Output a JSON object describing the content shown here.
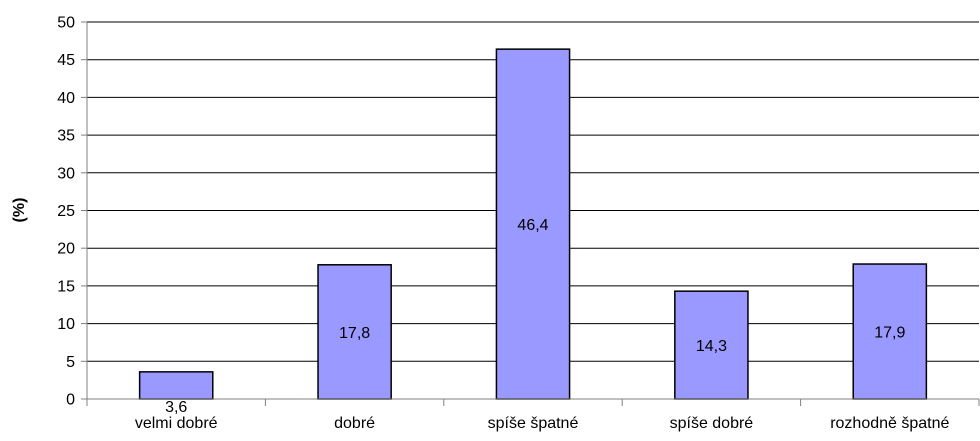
{
  "chart_data": {
    "type": "bar",
    "title": "",
    "xlabel": "",
    "ylabel": "(%)",
    "categories": [
      "velmi dobré",
      "dobré",
      "spíše špatné",
      "spíše dobré",
      "rozhodně špatné"
    ],
    "values": [
      3.6,
      17.8,
      46.4,
      14.3,
      17.9
    ],
    "value_labels": [
      "3,6",
      "17,8",
      "46,4",
      "14,3",
      "17,9"
    ],
    "ylim": [
      0,
      50
    ],
    "yticks": [
      0,
      5,
      10,
      15,
      20,
      25,
      30,
      35,
      40,
      45,
      50
    ],
    "grid": true,
    "legend": "none",
    "colors": {
      "bar_fill": "#9999ff",
      "bar_stroke": "#000000",
      "grid": "#000000",
      "axis": "#808080"
    }
  }
}
